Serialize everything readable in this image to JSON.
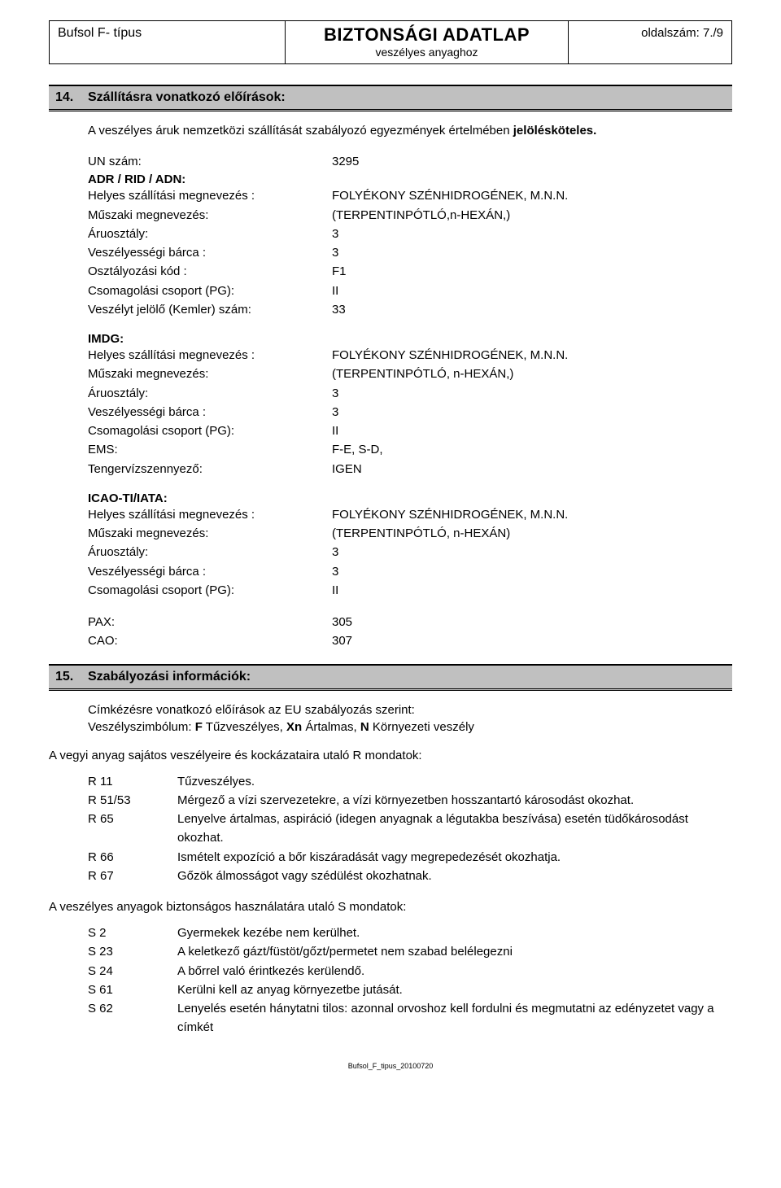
{
  "header": {
    "left": "Bufsol F- típus",
    "title": "BIZTONSÁGI ADATLAP",
    "subtitle": "veszélyes anyaghoz",
    "page_label": "oldalszám:  7./9"
  },
  "section14": {
    "number": "14.",
    "title": "Szállításra vonatkozó előírások:",
    "intro_pre": "A veszélyes áruk nemzetközi szállítását szabályozó egyezmények értelmében ",
    "intro_bold": "jelölésköteles.",
    "un_label": "UN szám:",
    "un_value": "3295",
    "adr": {
      "group": "ADR / RID / ADN:",
      "rows": [
        {
          "k": "Helyes szállítási megnevezés :",
          "v": "FOLYÉKONY SZÉNHIDROGÉNEK, M.N.N."
        },
        {
          "k": "Műszaki megnevezés:",
          "v": "(TERPENTINPÓTLÓ,n-HEXÁN,)"
        },
        {
          "k": "Áruosztály:",
          "v": "3"
        },
        {
          "k": "Veszélyességi bárca :",
          "v": "3"
        },
        {
          "k": "Osztályozási kód :",
          "v": "F1"
        },
        {
          "k": "Csomagolási csoport (PG):",
          "v": "II"
        },
        {
          "k": "Veszélyt jelölő (Kemler) szám:",
          "v": "33"
        }
      ]
    },
    "imdg": {
      "group": "IMDG:",
      "rows": [
        {
          "k": "Helyes szállítási megnevezés :",
          "v": "FOLYÉKONY SZÉNHIDROGÉNEK, M.N.N."
        },
        {
          "k": "Műszaki megnevezés:",
          "v": "(TERPENTINPÓTLÓ, n-HEXÁN,)"
        },
        {
          "k": "Áruosztály:",
          "v": "3"
        },
        {
          "k": "Veszélyességi bárca :",
          "v": "3"
        },
        {
          "k": "Csomagolási csoport (PG):",
          "v": "II"
        },
        {
          "k": "EMS:",
          "v": "F-E, S-D,"
        },
        {
          "k": "Tengervízszennyező:",
          "v": "IGEN"
        }
      ]
    },
    "icao": {
      "group": "ICAO-TI/IATA:",
      "rows": [
        {
          "k": "Helyes szállítási megnevezés :",
          "v": "FOLYÉKONY SZÉNHIDROGÉNEK, M.N.N."
        },
        {
          "k": "Műszaki megnevezés:",
          "v": "(TERPENTINPÓTLÓ, n-HEXÁN)"
        },
        {
          "k": "Áruosztály:",
          "v": "3"
        },
        {
          "k": "Veszélyességi bárca :",
          "v": "3"
        },
        {
          "k": "Csomagolási csoport (PG):",
          "v": "II"
        }
      ]
    },
    "pax": {
      "k": "PAX:",
      "v": "305"
    },
    "cao": {
      "k": "CAO:",
      "v": "307"
    }
  },
  "section15": {
    "number": "15.",
    "title": "Szabályozási információk:",
    "line1": "Címkézésre vonatkozó előírások az EU szabályozás szerint:",
    "line2_pre": "Veszélyszimbólum: ",
    "line2_parts": [
      {
        "b": "F",
        "t": "  Tűzveszélyes,   "
      },
      {
        "b": "Xn",
        "t": "   Ártalmas,   "
      },
      {
        "b": "N",
        "t": "   Környezeti veszély"
      }
    ],
    "r_intro": "A vegyi anyag sajátos veszélyeire és kockázataira utaló R mondatok:",
    "r_rows": [
      {
        "code": "R 11",
        "text": "Tűzveszélyes."
      },
      {
        "code": "R 51/53",
        "text": "Mérgező a vízi szervezetekre, a vízi környezetben hosszantartó károsodást okozhat."
      },
      {
        "code": "R 65",
        "text": "Lenyelve ártalmas, aspiráció (idegen anyagnak a légutakba beszívása) esetén tüdőkárosodást okozhat."
      },
      {
        "code": "R 66",
        "text": "Ismételt expozíció a bőr kiszáradását vagy megrepedezését okozhatja."
      },
      {
        "code": "R 67",
        "text": "Gőzök álmosságot vagy szédülést okozhatnak."
      }
    ],
    "s_intro": "A veszélyes anyagok biztonságos használatára utaló S mondatok:",
    "s_rows": [
      {
        "code": "S 2",
        "text": "Gyermekek kezébe nem kerülhet."
      },
      {
        "code": "S 23",
        "text": "A keletkező gázt/füstöt/gőzt/permetet nem szabad belélegezni"
      },
      {
        "code": "S 24",
        "text": "A bőrrel való érintkezés kerülendő."
      },
      {
        "code": "S 61",
        "text": "Kerülni kell az anyag környezetbe jutását."
      },
      {
        "code": "S 62",
        "text": "Lenyelés esetén hánytatni tilos: azonnal orvoshoz kell fordulni és megmutatni az edényzetet vagy a címkét"
      }
    ]
  },
  "footer": "Bufsol_F_tipus_20100720"
}
